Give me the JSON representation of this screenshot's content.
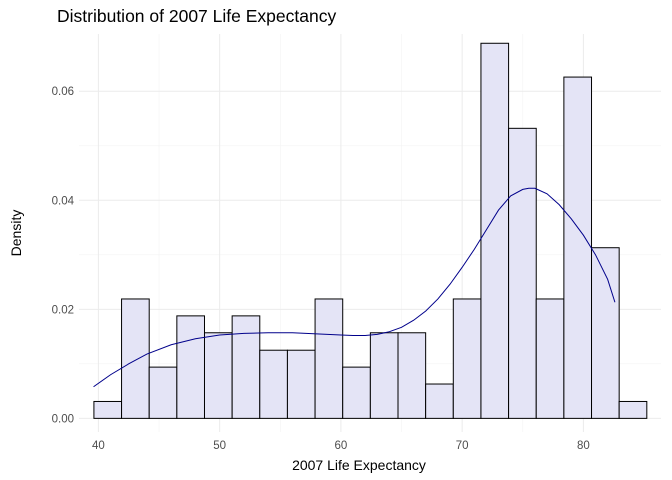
{
  "chart_data": {
    "type": "bar",
    "title": "Distribution of 2007 Life Expectancy",
    "xlabel": "2007 Life Expectancy",
    "ylabel": "Density",
    "xlim": [
      38.4,
      86.4
    ],
    "ylim": [
      -0.0025,
      0.0705
    ],
    "x_ticks": [
      40,
      50,
      60,
      70,
      80
    ],
    "y_ticks": [
      0.0,
      0.02,
      0.04,
      0.06
    ],
    "y_tick_labels": [
      "0.00",
      "0.02",
      "0.04",
      "0.06"
    ],
    "grid": true,
    "bins": [
      {
        "x0": 39.63,
        "x1": 41.91,
        "density": 0.0031
      },
      {
        "x0": 41.91,
        "x1": 44.19,
        "density": 0.0219
      },
      {
        "x0": 44.19,
        "x1": 46.47,
        "density": 0.0094
      },
      {
        "x0": 46.47,
        "x1": 48.75,
        "density": 0.0188
      },
      {
        "x0": 48.75,
        "x1": 51.03,
        "density": 0.0157
      },
      {
        "x0": 51.03,
        "x1": 53.31,
        "density": 0.0188
      },
      {
        "x0": 53.31,
        "x1": 55.59,
        "density": 0.0125
      },
      {
        "x0": 55.59,
        "x1": 57.87,
        "density": 0.0125
      },
      {
        "x0": 57.87,
        "x1": 60.15,
        "density": 0.0219
      },
      {
        "x0": 60.15,
        "x1": 62.43,
        "density": 0.0094
      },
      {
        "x0": 62.43,
        "x1": 64.71,
        "density": 0.0157
      },
      {
        "x0": 64.71,
        "x1": 66.99,
        "density": 0.0157
      },
      {
        "x0": 66.99,
        "x1": 69.27,
        "density": 0.0063
      },
      {
        "x0": 69.27,
        "x1": 71.55,
        "density": 0.0219
      },
      {
        "x0": 71.55,
        "x1": 73.83,
        "density": 0.0688
      },
      {
        "x0": 73.83,
        "x1": 76.11,
        "density": 0.0532
      },
      {
        "x0": 76.11,
        "x1": 78.39,
        "density": 0.0219
      },
      {
        "x0": 78.39,
        "x1": 80.67,
        "density": 0.0626
      },
      {
        "x0": 80.67,
        "x1": 82.95,
        "density": 0.0313
      },
      {
        "x0": 82.95,
        "x1": 85.23,
        "density": 0.0031
      }
    ],
    "density_curve": {
      "x": [
        39.6,
        41.0,
        42.5,
        44.0,
        46.0,
        48.0,
        50.0,
        52.0,
        54.0,
        56.0,
        58.0,
        60.0,
        61.0,
        62.0,
        63.0,
        64.0,
        65.0,
        66.0,
        67.0,
        68.0,
        69.0,
        70.0,
        71.0,
        72.0,
        73.0,
        74.0,
        75.0,
        75.5,
        76.0,
        77.0,
        78.0,
        79.0,
        80.0,
        81.0,
        82.0,
        82.6
      ],
      "y": [
        0.0058,
        0.008,
        0.01,
        0.0118,
        0.0135,
        0.0146,
        0.0153,
        0.0156,
        0.0157,
        0.0157,
        0.0155,
        0.0153,
        0.0152,
        0.0152,
        0.0154,
        0.0159,
        0.0167,
        0.018,
        0.0197,
        0.0219,
        0.0246,
        0.0277,
        0.031,
        0.0346,
        0.0382,
        0.0408,
        0.042,
        0.0422,
        0.0422,
        0.0412,
        0.0392,
        0.0366,
        0.0336,
        0.03,
        0.0255,
        0.0213
      ]
    }
  }
}
